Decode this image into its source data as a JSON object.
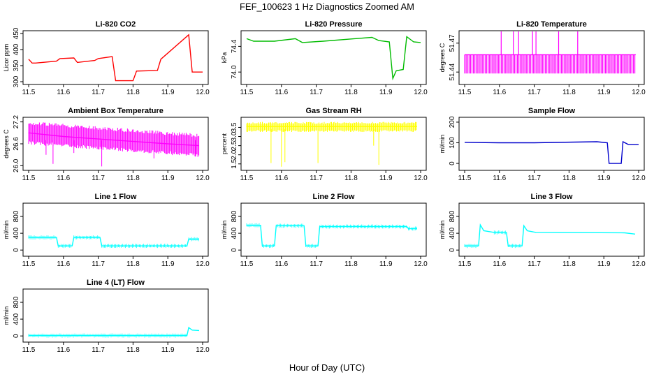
{
  "figure": {
    "title": "FEF_100623  1 Hz Diagnostics Zoomed AM",
    "xlabel": "Hour of Day (UTC)"
  },
  "chart_data": [
    {
      "type": "line",
      "title": "Li-820 CO2",
      "ylabel": "Licor ppm",
      "color": "#ff0000",
      "xlim": [
        11.5,
        12.0
      ],
      "ylim": [
        300,
        450
      ],
      "xticks": [
        "11.5",
        "11.6",
        "11.7",
        "11.8",
        "11.9",
        "12.0"
      ],
      "yticks": [
        "300",
        "350",
        "400",
        "450"
      ],
      "x": [
        11.5,
        11.51,
        11.52,
        11.58,
        11.59,
        11.63,
        11.64,
        11.69,
        11.7,
        11.74,
        11.75,
        11.8,
        11.81,
        11.87,
        11.88,
        11.96,
        11.97,
        12.0
      ],
      "y": [
        370,
        358,
        358,
        364,
        372,
        374,
        360,
        366,
        372,
        378,
        303,
        303,
        333,
        335,
        370,
        446,
        330,
        330
      ]
    },
    {
      "type": "line",
      "title": "Li-820 Pressure",
      "ylabel": "kPa",
      "color": "#00bb00",
      "xlim": [
        11.5,
        12.0
      ],
      "ylim": [
        73.85,
        74.6
      ],
      "xticks": [
        "11.5",
        "11.6",
        "11.7",
        "11.8",
        "11.9",
        "12.0"
      ],
      "yticks": [
        "74.0",
        "74.4"
      ],
      "x": [
        11.5,
        11.52,
        11.58,
        11.64,
        11.66,
        11.72,
        11.86,
        11.88,
        11.91,
        11.92,
        11.93,
        11.95,
        11.96,
        11.98,
        12.0
      ],
      "y": [
        74.52,
        74.48,
        74.48,
        74.52,
        74.46,
        74.48,
        74.54,
        74.49,
        74.47,
        73.9,
        74.02,
        74.04,
        74.55,
        74.47,
        74.46
      ]
    },
    {
      "type": "line",
      "title": "Li-820 Temperature",
      "ylabel": "degrees C",
      "color": "#ff00ff",
      "xlim": [
        11.5,
        12.0
      ],
      "ylim": [
        51.43,
        51.48
      ],
      "xticks": [
        "11.5",
        "11.6",
        "11.7",
        "11.8",
        "11.9",
        "12.0"
      ],
      "yticks": [
        "51.44",
        "51.47"
      ],
      "x": [
        11.5,
        11.9917
      ],
      "y": [
        51.458,
        51.458
      ]
    },
    {
      "type": "line",
      "title": "Ambient Box Temperature",
      "ylabel": "degrees C",
      "color": "#ff00ff",
      "xlim": [
        11.5,
        12.0
      ],
      "ylim": [
        25.95,
        27.25
      ],
      "xticks": [
        "11.5",
        "11.6",
        "11.7",
        "11.8",
        "11.9",
        "12.0"
      ],
      "yticks": [
        "26.0",
        "26.6",
        "27.2"
      ],
      "x": [
        11.5,
        11.6,
        11.75,
        11.9,
        11.99
      ],
      "y": [
        26.9,
        26.8,
        26.7,
        26.6,
        26.55
      ]
    },
    {
      "type": "line",
      "title": "Gas Stream RH",
      "ylabel": "percent",
      "color": "#ffff00",
      "xlim": [
        11.5,
        12.0
      ],
      "ylim": [
        1.3,
        3.9
      ],
      "xticks": [
        "11.5",
        "11.6",
        "11.7",
        "11.8",
        "11.9",
        "12.0"
      ],
      "yticks": [
        "1.5",
        "2.0",
        "2.5",
        "3.0",
        "3.5"
      ],
      "x": [
        11.5,
        11.99
      ],
      "y": [
        3.55,
        3.55
      ]
    },
    {
      "type": "line",
      "title": "Sample Flow",
      "ylabel": "ml/min",
      "color": "#0000cc",
      "xlim": [
        11.5,
        12.0
      ],
      "ylim": [
        -20,
        210
      ],
      "xticks": [
        "11.5",
        "11.6",
        "11.7",
        "11.8",
        "11.9",
        "12.0"
      ],
      "yticks": [
        "0",
        "100",
        "200"
      ],
      "x": [
        11.5,
        11.6,
        11.7,
        11.88,
        11.91,
        11.915,
        11.95,
        11.955,
        11.97,
        12.0
      ],
      "y": [
        102,
        100,
        100,
        105,
        100,
        0,
        0,
        105,
        92,
        92
      ]
    },
    {
      "type": "line",
      "title": "Line 1 Flow",
      "ylabel": "ml/min",
      "color": "#00ffff",
      "xlim": [
        11.5,
        12.0
      ],
      "ylim": [
        -80,
        1050
      ],
      "xticks": [
        "11.5",
        "11.6",
        "11.7",
        "11.8",
        "11.9",
        "12.0"
      ],
      "yticks": [
        "0",
        "400",
        "800"
      ],
      "x": [
        11.5,
        11.58,
        11.585,
        11.625,
        11.63,
        11.705,
        11.71,
        11.955,
        11.96,
        11.99
      ],
      "y": [
        300,
        300,
        100,
        100,
        300,
        300,
        100,
        100,
        260,
        260
      ]
    },
    {
      "type": "line",
      "title": "Line 2 Flow",
      "ylabel": "ml/min",
      "color": "#00ffff",
      "xlim": [
        11.5,
        12.0
      ],
      "ylim": [
        -80,
        1050
      ],
      "xticks": [
        "11.5",
        "11.6",
        "11.7",
        "11.8",
        "11.9",
        "12.0"
      ],
      "yticks": [
        "0",
        "400",
        "800"
      ],
      "x": [
        11.5,
        11.54,
        11.545,
        11.58,
        11.585,
        11.665,
        11.67,
        11.705,
        11.71,
        11.96,
        11.965,
        11.99
      ],
      "y": [
        590,
        590,
        100,
        100,
        580,
        580,
        100,
        100,
        560,
        560,
        510,
        510
      ]
    },
    {
      "type": "line",
      "title": "Line 3 Flow",
      "ylabel": "ml/min",
      "color": "#00ffff",
      "xlim": [
        11.5,
        12.0
      ],
      "ylim": [
        -80,
        1050
      ],
      "xticks": [
        "11.5",
        "11.6",
        "11.7",
        "11.8",
        "11.9",
        "12.0"
      ],
      "yticks": [
        "0",
        "400",
        "800"
      ],
      "x": [
        11.5,
        11.54,
        11.545,
        11.555,
        11.585,
        11.62,
        11.625,
        11.665,
        11.67,
        11.68,
        11.705,
        11.96,
        11.99
      ],
      "y": [
        100,
        100,
        600,
        460,
        420,
        420,
        100,
        100,
        580,
        460,
        420,
        410,
        380
      ]
    },
    {
      "type": "line",
      "title": "Line 4 (LT) Flow",
      "ylabel": "ml/min",
      "color": "#00ffff",
      "xlim": [
        11.5,
        12.0
      ],
      "ylim": [
        -80,
        1050
      ],
      "xticks": [
        "11.5",
        "11.6",
        "11.7",
        "11.8",
        "11.9",
        "12.0"
      ],
      "yticks": [
        "0",
        "400",
        "800"
      ],
      "x": [
        11.5,
        11.955,
        11.96,
        11.97,
        11.99
      ],
      "y": [
        10,
        10,
        200,
        140,
        130
      ]
    }
  ]
}
